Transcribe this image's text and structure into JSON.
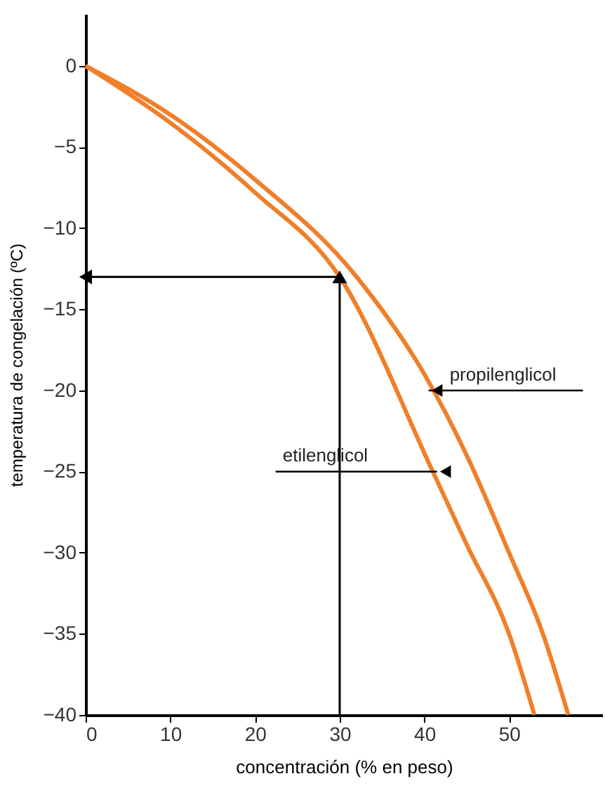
{
  "chart_data": {
    "type": "line",
    "xlabel": "concentración (% en peso)",
    "ylabel": "temperatura de congelación (ºC)",
    "xlim": [
      0,
      61
    ],
    "ylim": [
      -40,
      3.2
    ],
    "xticks": [
      0,
      10,
      20,
      30,
      40,
      50
    ],
    "yticks": [
      0,
      -5,
      -10,
      -15,
      -20,
      -25,
      -30,
      -35,
      -40
    ],
    "grid": false,
    "series": [
      {
        "color": "#f07f2a",
        "x": [
          0,
          10,
          20,
          32,
          40,
          45,
          50,
          54,
          57
        ],
        "values": [
          0,
          -3,
          -7,
          -13,
          -19,
          -24,
          -30,
          -35,
          -40
        ]
      },
      {
        "color": "#f07f2a",
        "x": [
          0,
          10,
          20,
          30,
          41,
          45,
          50,
          53
        ],
        "values": [
          0,
          -3.5,
          -7.8,
          -13,
          -25,
          -29.5,
          -35,
          -40
        ]
      },
      {
        "color": "#000000",
        "marker": "triangle",
        "x": [
          30,
          30,
          0
        ],
        "values": [
          -40,
          -13,
          -13
        ]
      }
    ],
    "annotations": [
      {
        "text": "propilenglicol",
        "x": 40.5,
        "y": -20
      },
      {
        "text": "etilenglicol",
        "x": 41.5,
        "y": -25
      }
    ]
  }
}
